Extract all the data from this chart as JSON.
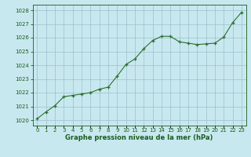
{
  "x": [
    0,
    1,
    2,
    3,
    4,
    5,
    6,
    7,
    8,
    9,
    10,
    11,
    12,
    13,
    14,
    15,
    16,
    17,
    18,
    19,
    20,
    21,
    22,
    23
  ],
  "y": [
    1020.1,
    1020.6,
    1021.05,
    1021.7,
    1021.8,
    1021.9,
    1022.0,
    1022.25,
    1022.4,
    1023.2,
    1024.05,
    1024.45,
    1025.2,
    1025.8,
    1026.1,
    1026.1,
    1025.7,
    1025.6,
    1025.5,
    1025.55,
    1025.6,
    1026.05,
    1027.1,
    1027.85
  ],
  "line_color": "#2d6e2d",
  "marker": "+",
  "bg_color": "#c8e8f0",
  "grid_color": "#9ac0cc",
  "ylabel_ticks": [
    1020,
    1021,
    1022,
    1023,
    1024,
    1025,
    1026,
    1027,
    1028
  ],
  "xlabel": "Graphe pression niveau de la mer (hPa)",
  "xlabel_color": "#1a5c1a",
  "ylim": [
    1019.6,
    1028.4
  ],
  "xlim": [
    -0.5,
    23.5
  ],
  "tick_color": "#1a5c1a",
  "spine_color": "#1a5c1a",
  "tick_fontsize": 5,
  "xlabel_fontsize": 6,
  "linewidth": 0.8,
  "markersize": 3.5,
  "markeredgewidth": 0.9
}
